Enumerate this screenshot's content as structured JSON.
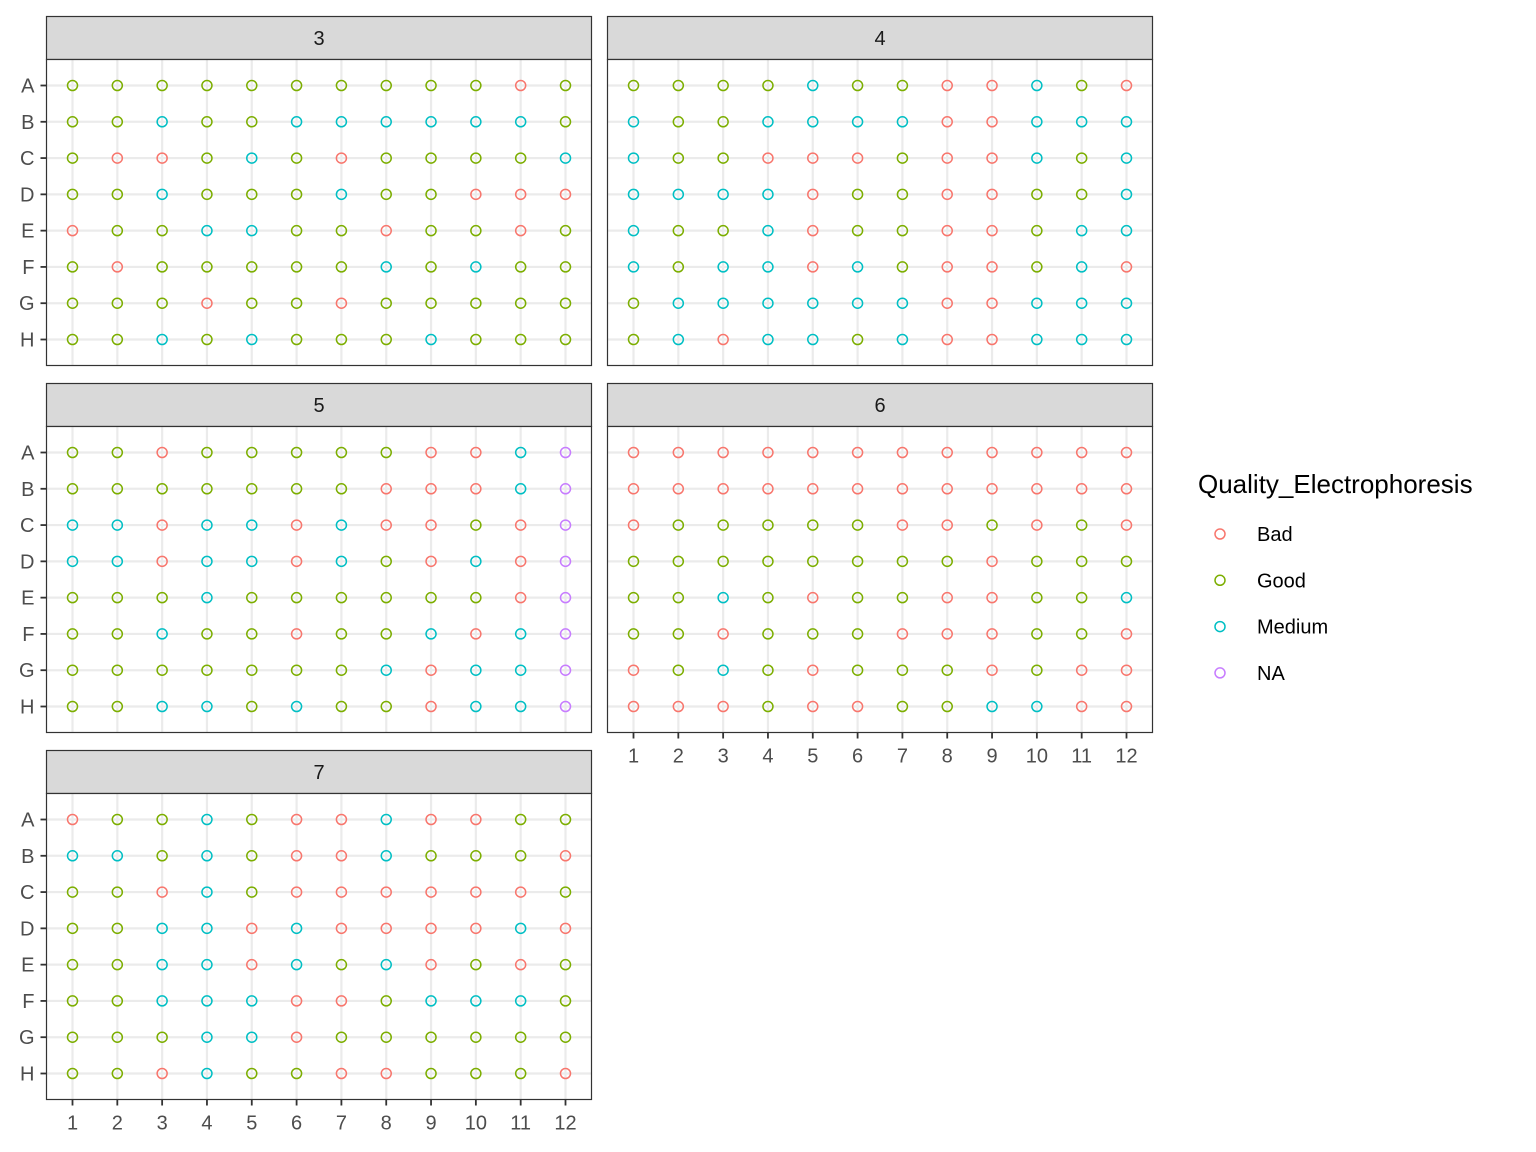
{
  "chart_data": {
    "type": "scatter",
    "facet_variable": "plate",
    "x_ticks": [
      "1",
      "2",
      "3",
      "4",
      "5",
      "6",
      "7",
      "8",
      "9",
      "10",
      "11",
      "12"
    ],
    "y_ticks": [
      "A",
      "B",
      "C",
      "D",
      "E",
      "F",
      "G",
      "H"
    ],
    "legend": {
      "title": "Quality_Electrophoresis",
      "placement": "right",
      "entries": [
        {
          "label": "Bad",
          "code": "B",
          "color": "#F8766D"
        },
        {
          "label": "Good",
          "code": "G",
          "color": "#7CAE00"
        },
        {
          "label": "Medium",
          "code": "M",
          "color": "#00BFC4"
        },
        {
          "label": "NA",
          "code": "N",
          "color": "#C77CFF"
        }
      ]
    },
    "grid": true,
    "panels": [
      {
        "label": "3",
        "rows": [
          "GGGGGGGGGGBG",
          "GGMGGMMMMMMG",
          "GBBGMGBGGGGM",
          "GGMGGGMGGBBB",
          "BGGMMGGBGGBG",
          "GBGGGGGMGMGG",
          "GGGBGGBGGGGG",
          "GGMGMGGGMGGG"
        ]
      },
      {
        "label": "4",
        "rows": [
          "GGGGMGGBBMGB",
          "MGGMMMMBBMMM",
          "MGGBBBGBBMGM",
          "MMMMBGGBBGGM",
          "MGGMBGGBBGMM",
          "MGMMBMGBBGMB",
          "GMMMMMMBBMMM",
          "GMBMMGMBBMMM"
        ]
      },
      {
        "label": "5",
        "rows": [
          "GGBGGGGGBBMN",
          "GGGGGGGBBBMN",
          "MMBMMBMBBGBN",
          "MMBMMBMGBMBN",
          "GGGMGGGGGGBN",
          "GGMGGBGGMBMN",
          "GGGGGGGMBMMN",
          "GGMMGMGGBMMN"
        ]
      },
      {
        "label": "6",
        "rows": [
          "BBBBBBBBBBBB",
          "BBBBBBBBBBBB",
          "BGGGGGBBGBGB",
          "GGGGGGGGBGGG",
          "GGMGBGGBBGGM",
          "GGBGGGBBBGGB",
          "BGMGBGGGBGBB",
          "BBBGBBGGMMBB"
        ]
      },
      {
        "label": "7",
        "rows": [
          "BGGMGBBMBBGG",
          "MMGMGBBMGGGB",
          "GGBMGBBBBBBG",
          "GGMMBMBBBBMB",
          "GGMMBMGMBGBG",
          "GGMMMBBGMMMG",
          "GGGMMBGGGGGG",
          "GGBMGGBBGGGB"
        ]
      }
    ]
  }
}
